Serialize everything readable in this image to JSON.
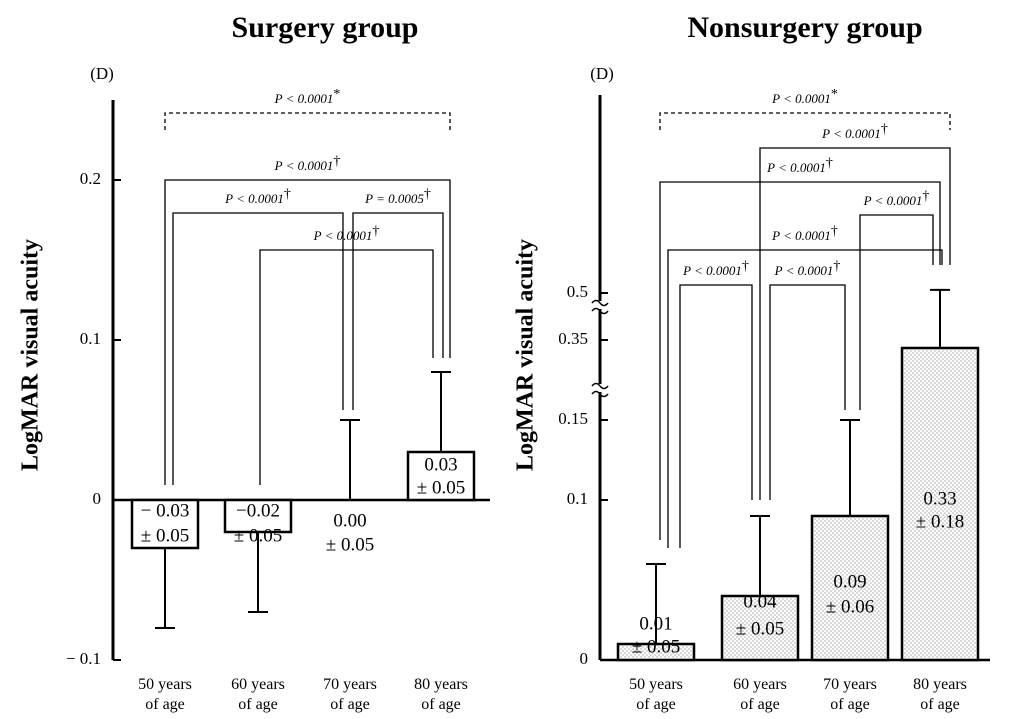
{
  "chart_data": [
    {
      "type": "bar",
      "title": "Surgery group",
      "panel_label": "(D)",
      "y_label": "LogMAR visual acuity",
      "categories": [
        "50 years of age",
        "60 years of age",
        "70 years of age",
        "80 years of age"
      ],
      "values": [
        -0.03,
        -0.02,
        0,
        0.03
      ],
      "value_labels": [
        "− 0.03",
        "−0.02",
        "0.00",
        "0.03"
      ],
      "errors": [
        0.05,
        0.05,
        0.05,
        0.05
      ],
      "error_labels": [
        "± 0.05",
        "± 0.05",
        "± 0.05",
        "± 0.05"
      ],
      "color": "#ffffff",
      "fill": "solid",
      "ylim": [
        -0.1,
        0.25
      ],
      "yticks": [
        {
          "value": -0.1,
          "label": "− 0.1"
        },
        0,
        0.1,
        0.2
      ],
      "comparisons": [
        {
          "label": "P < 0.0001",
          "symbol": "*"
        },
        {
          "label": "P < 0.0001",
          "symbol": "†"
        },
        {
          "label": "P < 0.0001",
          "symbol": "†"
        },
        {
          "label": "P = 0.0005",
          "symbol": "†"
        },
        {
          "label": "P < 0.0001",
          "symbol": "†"
        }
      ]
    },
    {
      "type": "bar",
      "title": "Nonsurgery group",
      "panel_label": "(D)",
      "y_label": "LogMAR visual acuity",
      "categories": [
        "50 years of age",
        "60 years of age",
        "70 years of age",
        "80 years of age"
      ],
      "values": [
        0.01,
        0.04,
        0.09,
        0.33
      ],
      "value_labels": [
        "0.01",
        "0.04",
        "0.09",
        "0.33"
      ],
      "errors": [
        0.05,
        0.05,
        0.06,
        0.18
      ],
      "error_labels": [
        "± 0.05",
        "± 0.05",
        "± 0.06",
        "± 0.18"
      ],
      "color": "#ffffff",
      "fill": "dotted",
      "y_scale": "broken",
      "ylim": [
        0,
        0.5
      ],
      "yticks": [
        0,
        0.1,
        0.15,
        0.35,
        0.5
      ],
      "comparisons": [
        {
          "label": "P < 0.0001",
          "symbol": "*"
        },
        {
          "label": "P < 0.0001",
          "symbol": "†"
        },
        {
          "label": "P < 0.0001",
          "symbol": "†"
        },
        {
          "label": "P < 0.0001",
          "symbol": "†"
        },
        {
          "label": "P < 0.0001",
          "symbol": "†"
        },
        {
          "label": "P < 0.0001",
          "symbol": "†"
        },
        {
          "label": "P < 0.0001",
          "symbol": "†"
        }
      ]
    }
  ]
}
